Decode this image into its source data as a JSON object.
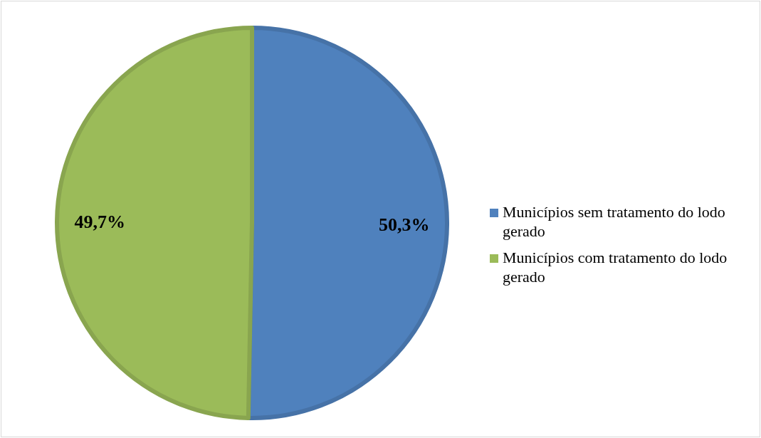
{
  "chart_data": {
    "type": "pie",
    "categories": [
      "Municípios sem tratamento do lodo gerado",
      "Municípios com tratamento do lodo gerado"
    ],
    "values": [
      50.3,
      49.7
    ],
    "colors": [
      "#4f81bd",
      "#9bbb59"
    ],
    "value_labels": [
      "50,3%",
      "49,7%"
    ],
    "legend": "right"
  }
}
